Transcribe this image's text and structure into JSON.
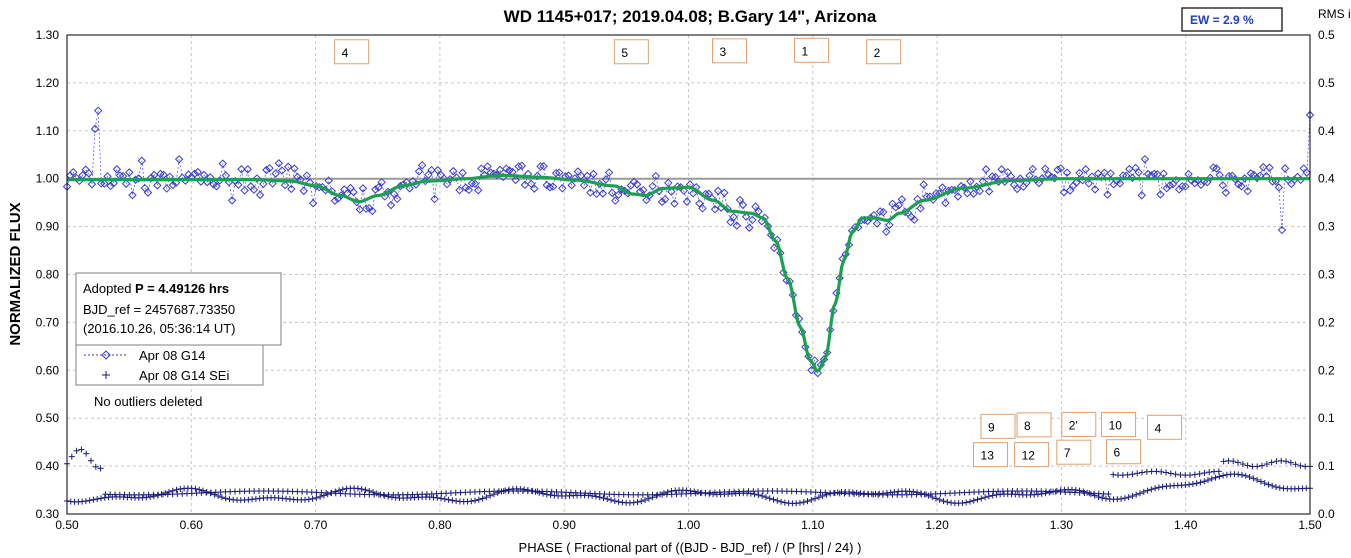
{
  "chart_data": {
    "type": "scatter",
    "title": "WD 1145+017; 2019.04.08; B.Gary 14\", Arizona",
    "xlabel": "PHASE ( Fractional part of ((BJD - BJD_ref) / (P [hrs] / 24) )",
    "ylabel": "NORMALIZED FLUX",
    "y2label": "RMS i",
    "xlim": [
      0.5,
      1.5
    ],
    "ylim": [
      0.3,
      1.3
    ],
    "y2lim": [
      0.0,
      0.5
    ],
    "x_ticks": [
      "0.50",
      "0.60",
      "0.70",
      "0.80",
      "0.90",
      "1.00",
      "1.10",
      "1.20",
      "1.30",
      "1.40",
      "1.50"
    ],
    "y_ticks": [
      "0.30",
      "0.40",
      "0.50",
      "0.60",
      "0.70",
      "0.80",
      "0.90",
      "1.00",
      "1.10",
      "1.20",
      "1.30"
    ],
    "y2_ticks": [
      "0.0",
      "0.1",
      "0.1",
      "0.2",
      "0.2",
      "0.3",
      "0.3",
      "0.4",
      "0.4",
      "0.5",
      "0.5"
    ],
    "grid": true,
    "ew_label": "EW =  2.9 %",
    "info_box": {
      "line1_prefix": "Adopted ",
      "line1_bold": "P = 4.49126 hrs",
      "line2": "BJD_ref = 2457687.73350",
      "line3": "(2016.10.26, 05:36:14 UT)"
    },
    "legend": [
      {
        "name": "Apr 08 G14",
        "marker": "diamond"
      },
      {
        "name": "Apr 08 G14 SEi",
        "marker": "plus"
      }
    ],
    "note": "No outliers deleted",
    "dip_labels": [
      {
        "label": "4",
        "x": 0.729,
        "y": 1.265
      },
      {
        "label": "5",
        "x": 0.954,
        "y": 1.265
      },
      {
        "label": "3",
        "x": 1.033,
        "y": 1.267
      },
      {
        "label": "1",
        "x": 1.099,
        "y": 1.268
      },
      {
        "label": "2",
        "x": 1.157,
        "y": 1.265
      },
      {
        "label": "9",
        "x": 1.249,
        "y": 0.483
      },
      {
        "label": "8",
        "x": 1.278,
        "y": 0.486
      },
      {
        "label": "2'",
        "x": 1.314,
        "y": 0.487
      },
      {
        "label": "10",
        "x": 1.346,
        "y": 0.487
      },
      {
        "label": "4",
        "x": 1.383,
        "y": 0.481
      },
      {
        "label": "13",
        "x": 1.243,
        "y": 0.424
      },
      {
        "label": "12",
        "x": 1.276,
        "y": 0.424
      },
      {
        "label": "7",
        "x": 1.31,
        "y": 0.429
      },
      {
        "label": "6",
        "x": 1.35,
        "y": 0.43
      }
    ],
    "model_curve": {
      "name": "model",
      "x": [
        0.5,
        0.55,
        0.6,
        0.65,
        0.68,
        0.7,
        0.72,
        0.735,
        0.75,
        0.77,
        0.79,
        0.82,
        0.85,
        0.88,
        0.91,
        0.94,
        0.955,
        0.965,
        0.98,
        1.0,
        1.02,
        1.035,
        1.05,
        1.06,
        1.07,
        1.08,
        1.09,
        1.098,
        1.104,
        1.11,
        1.118,
        1.125,
        1.132,
        1.14,
        1.15,
        1.16,
        1.17,
        1.19,
        1.22,
        1.26,
        1.3,
        1.35,
        1.4,
        1.45,
        1.5
      ],
      "y": [
        0.998,
        0.998,
        0.998,
        0.998,
        0.995,
        0.985,
        0.965,
        0.952,
        0.965,
        0.985,
        0.995,
        1.0,
        1.007,
        1.003,
        0.997,
        0.985,
        0.968,
        0.965,
        0.98,
        0.982,
        0.955,
        0.932,
        0.928,
        0.918,
        0.87,
        0.79,
        0.69,
        0.62,
        0.598,
        0.625,
        0.74,
        0.83,
        0.89,
        0.918,
        0.918,
        0.913,
        0.928,
        0.955,
        0.98,
        0.996,
        1.0,
        1.0,
        1.0,
        1.0,
        1.0
      ]
    },
    "reference_line": 1.0
  }
}
